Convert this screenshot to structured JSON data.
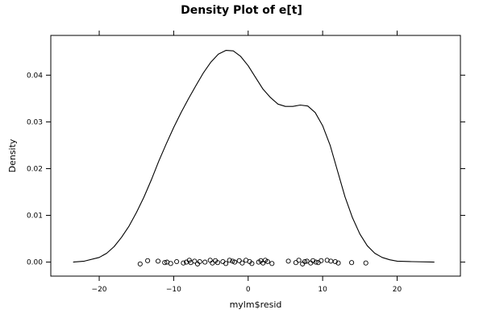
{
  "chart_data": {
    "type": "line",
    "title": "Density Plot of e[t]",
    "xlabel": "mylm$resid",
    "ylabel": "Density",
    "xlim": [
      -26.5,
      28.5
    ],
    "ylim": [
      -0.003,
      0.0485
    ],
    "x_ticks": [
      -20,
      -10,
      0,
      10,
      20
    ],
    "x_tick_labels": [
      "−20",
      "−10",
      "0",
      "10",
      "20"
    ],
    "y_ticks": [
      0.0,
      0.01,
      0.02,
      0.03,
      0.04
    ],
    "y_tick_labels": [
      "0.00",
      "0.01",
      "0.02",
      "0.03",
      "0.04"
    ],
    "grid": false,
    "series": [
      {
        "type": "line",
        "x": [
          -23.5,
          -22,
          -20,
          -19,
          -18,
          -17,
          -16,
          -15,
          -14,
          -13,
          -12,
          -11,
          -10,
          -9,
          -8,
          -7,
          -6,
          -5,
          -4,
          -3,
          -2,
          -1,
          0,
          1,
          2,
          3,
          4,
          5,
          6,
          7,
          8,
          9,
          10,
          11,
          12,
          13,
          14,
          15,
          16,
          17,
          18,
          19,
          20,
          22,
          25
        ],
        "y": [
          0.0,
          0.0002,
          0.001,
          0.0019,
          0.0033,
          0.0053,
          0.0077,
          0.0106,
          0.0139,
          0.0176,
          0.0216,
          0.0253,
          0.0288,
          0.032,
          0.035,
          0.0378,
          0.0405,
          0.0428,
          0.0445,
          0.0453,
          0.0452,
          0.044,
          0.042,
          0.0395,
          0.037,
          0.0352,
          0.0338,
          0.0333,
          0.0333,
          0.0336,
          0.0334,
          0.032,
          0.0292,
          0.025,
          0.0195,
          0.014,
          0.0095,
          0.006,
          0.0035,
          0.0019,
          0.001,
          0.0005,
          0.0002,
          0.0001,
          0.0
        ]
      },
      {
        "type": "scatter",
        "marker": "open-circle",
        "x": [
          -14.5,
          -13.5,
          -12.1,
          -11.2,
          -10.9,
          -10.4,
          -9.6,
          -8.7,
          -8.3,
          -7.9,
          -7.7,
          -7.2,
          -6.8,
          -6.5,
          -5.8,
          -5.1,
          -4.8,
          -4.4,
          -4.1,
          -3.4,
          -3.0,
          -2.5,
          -2.1,
          -1.8,
          -1.2,
          -0.8,
          -0.3,
          0.2,
          0.5,
          1.4,
          1.7,
          2.0,
          2.3,
          2.6,
          3.2,
          5.4,
          6.4,
          6.8,
          7.3,
          7.6,
          7.9,
          8.4,
          8.7,
          9.1,
          9.4,
          9.8,
          10.6,
          11.1,
          11.7,
          12.1,
          13.9,
          15.8
        ],
        "y": [
          -0.0004,
          0.0003,
          0.0002,
          -0.0001,
          0.0,
          -0.0003,
          0.0001,
          -0.0002,
          0.0,
          0.0004,
          -0.0001,
          0.0002,
          -0.0004,
          0.0001,
          0.0,
          0.0004,
          -0.0002,
          0.0003,
          -0.0001,
          0.0001,
          -0.0003,
          0.0004,
          0.0002,
          0.0,
          0.0003,
          -0.0002,
          0.0004,
          0.0001,
          -0.0003,
          0.0,
          0.0003,
          -0.0002,
          0.0004,
          0.0001,
          -0.0003,
          0.0002,
          -0.0001,
          0.0004,
          -0.0004,
          0.0001,
          0.0002,
          -0.0002,
          0.0003,
          0.0,
          -0.0001,
          0.0003,
          0.0004,
          0.0002,
          0.0001,
          -0.0002,
          -0.0001,
          -0.0002
        ]
      }
    ]
  }
}
